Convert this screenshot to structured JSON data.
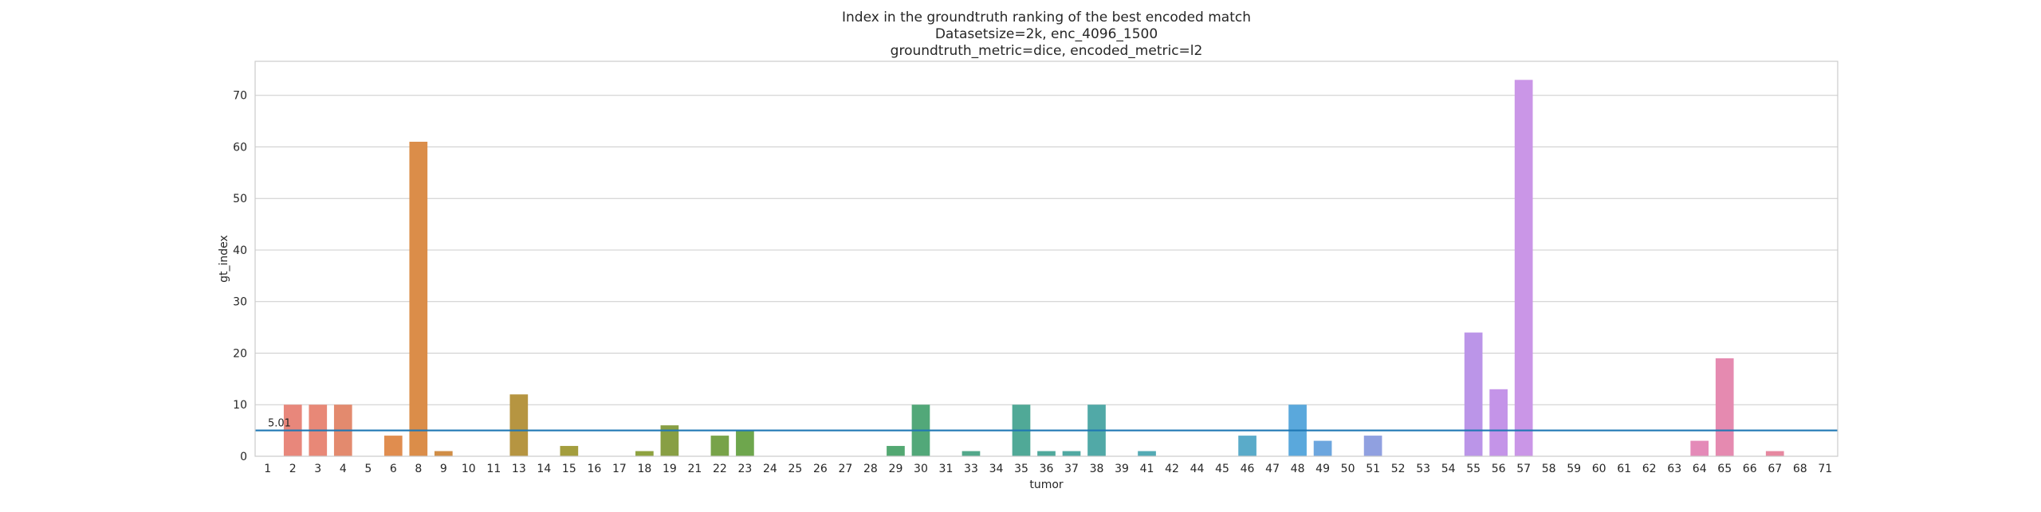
{
  "chart_data": {
    "type": "bar",
    "title_lines": [
      "Index in the groundtruth ranking of the best encoded match",
      "Datasetsize=2k, enc_4096_1500",
      "groundtruth_metric=dice, encoded_metric=l2"
    ],
    "xlabel": "tumor",
    "ylabel": "gt_index",
    "ylim": [
      0,
      76.6
    ],
    "yticks": [
      0,
      10,
      20,
      30,
      40,
      50,
      60,
      70
    ],
    "grid": true,
    "categories": [
      "1",
      "2",
      "3",
      "4",
      "5",
      "6",
      "8",
      "9",
      "10",
      "11",
      "13",
      "14",
      "15",
      "16",
      "17",
      "18",
      "19",
      "21",
      "22",
      "23",
      "24",
      "25",
      "26",
      "27",
      "28",
      "29",
      "30",
      "31",
      "33",
      "34",
      "35",
      "36",
      "37",
      "38",
      "39",
      "41",
      "42",
      "44",
      "45",
      "46",
      "47",
      "48",
      "49",
      "50",
      "51",
      "52",
      "53",
      "54",
      "55",
      "56",
      "57",
      "58",
      "59",
      "60",
      "61",
      "62",
      "63",
      "64",
      "65",
      "66",
      "67",
      "68",
      "71"
    ],
    "values": [
      0,
      10,
      10,
      10,
      0,
      4,
      61,
      1,
      0,
      0,
      12,
      0,
      2,
      0,
      0,
      1,
      6,
      0,
      4,
      5,
      0,
      0,
      0,
      0,
      0,
      2,
      10,
      0,
      1,
      0,
      10,
      1,
      1,
      10,
      0,
      1,
      0,
      0,
      0,
      4,
      0,
      10,
      3,
      0,
      4,
      0,
      0,
      0,
      24,
      13,
      73,
      0,
      0,
      0,
      0,
      0,
      0,
      3,
      19,
      0,
      1,
      0,
      0
    ],
    "colors": [
      "#e7867e",
      "#e8877b",
      "#e88877",
      "#e38a6e",
      "#e48c5d",
      "#e08d4f",
      "#db8d49",
      "#d08d46",
      "#c89040",
      "#bf9440",
      "#b69541",
      "#ac9a3e",
      "#a49e3e",
      "#9c9f3e",
      "#95a03f",
      "#8ea240",
      "#889f44",
      "#80a146",
      "#78a349",
      "#6ea64d",
      "#62a852",
      "#59a857",
      "#56a85e",
      "#55a864",
      "#54a86b",
      "#53a872",
      "#52a879",
      "#52a882",
      "#52a88a",
      "#51a990",
      "#50a997",
      "#50a99c",
      "#50a9a2",
      "#51a9a7",
      "#52a9ad",
      "#53aab4",
      "#56aab9",
      "#58aabd",
      "#5cabc3",
      "#5aabc9",
      "#5aaad3",
      "#5aa8dc",
      "#6ca6de",
      "#80a4df",
      "#90a0e0",
      "#9e9ee2",
      "#ac9ae4",
      "#b798e6",
      "#bb95e8",
      "#c494e8",
      "#ca96e7",
      "#d093e2",
      "#d792dd",
      "#dc91d6",
      "#df8fcf",
      "#e28dc8",
      "#e38bc0",
      "#e48ab8",
      "#e58ab0",
      "#e589a8",
      "#e688a0",
      "#e78898",
      "#e7878f"
    ],
    "reference_line": {
      "value": 5.01,
      "label": "5.01",
      "color": "#1f77b4"
    }
  }
}
